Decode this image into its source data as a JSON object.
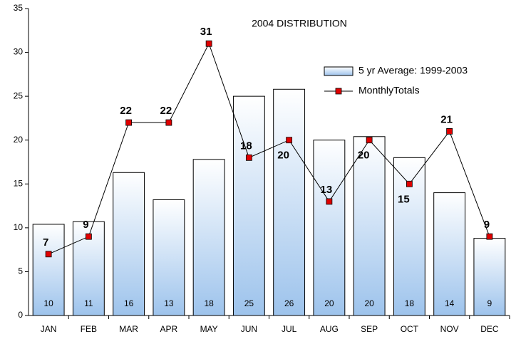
{
  "chart_data": {
    "type": "bar_line",
    "title": "2004 DISTRIBUTION",
    "categories": [
      "JAN",
      "FEB",
      "MAR",
      "APR",
      "MAY",
      "JUN",
      "JUL",
      "AUG",
      "SEP",
      "OCT",
      "NOV",
      "DEC"
    ],
    "series": [
      {
        "name": "5 yr Average: 1999-2003",
        "type": "bar",
        "color": "#9dc3ec",
        "values": [
          10.4,
          10.7,
          16.3,
          13.2,
          17.8,
          25.0,
          25.8,
          20.0,
          20.4,
          18.0,
          14.0,
          8.8
        ],
        "value_labels": [
          "10",
          "11",
          "16",
          "13",
          "18",
          "25",
          "26",
          "20",
          "20",
          "18",
          "14",
          "9"
        ]
      },
      {
        "name": "MonthlyTotals",
        "type": "line",
        "color": "#e00000",
        "values": [
          7,
          9,
          22,
          22,
          31,
          18,
          20,
          13,
          20,
          15,
          21,
          9
        ]
      }
    ],
    "ylim": [
      0,
      35
    ],
    "yticks": [
      0,
      5,
      10,
      15,
      20,
      25,
      30,
      35
    ],
    "grid": false,
    "legend": "upper right"
  }
}
